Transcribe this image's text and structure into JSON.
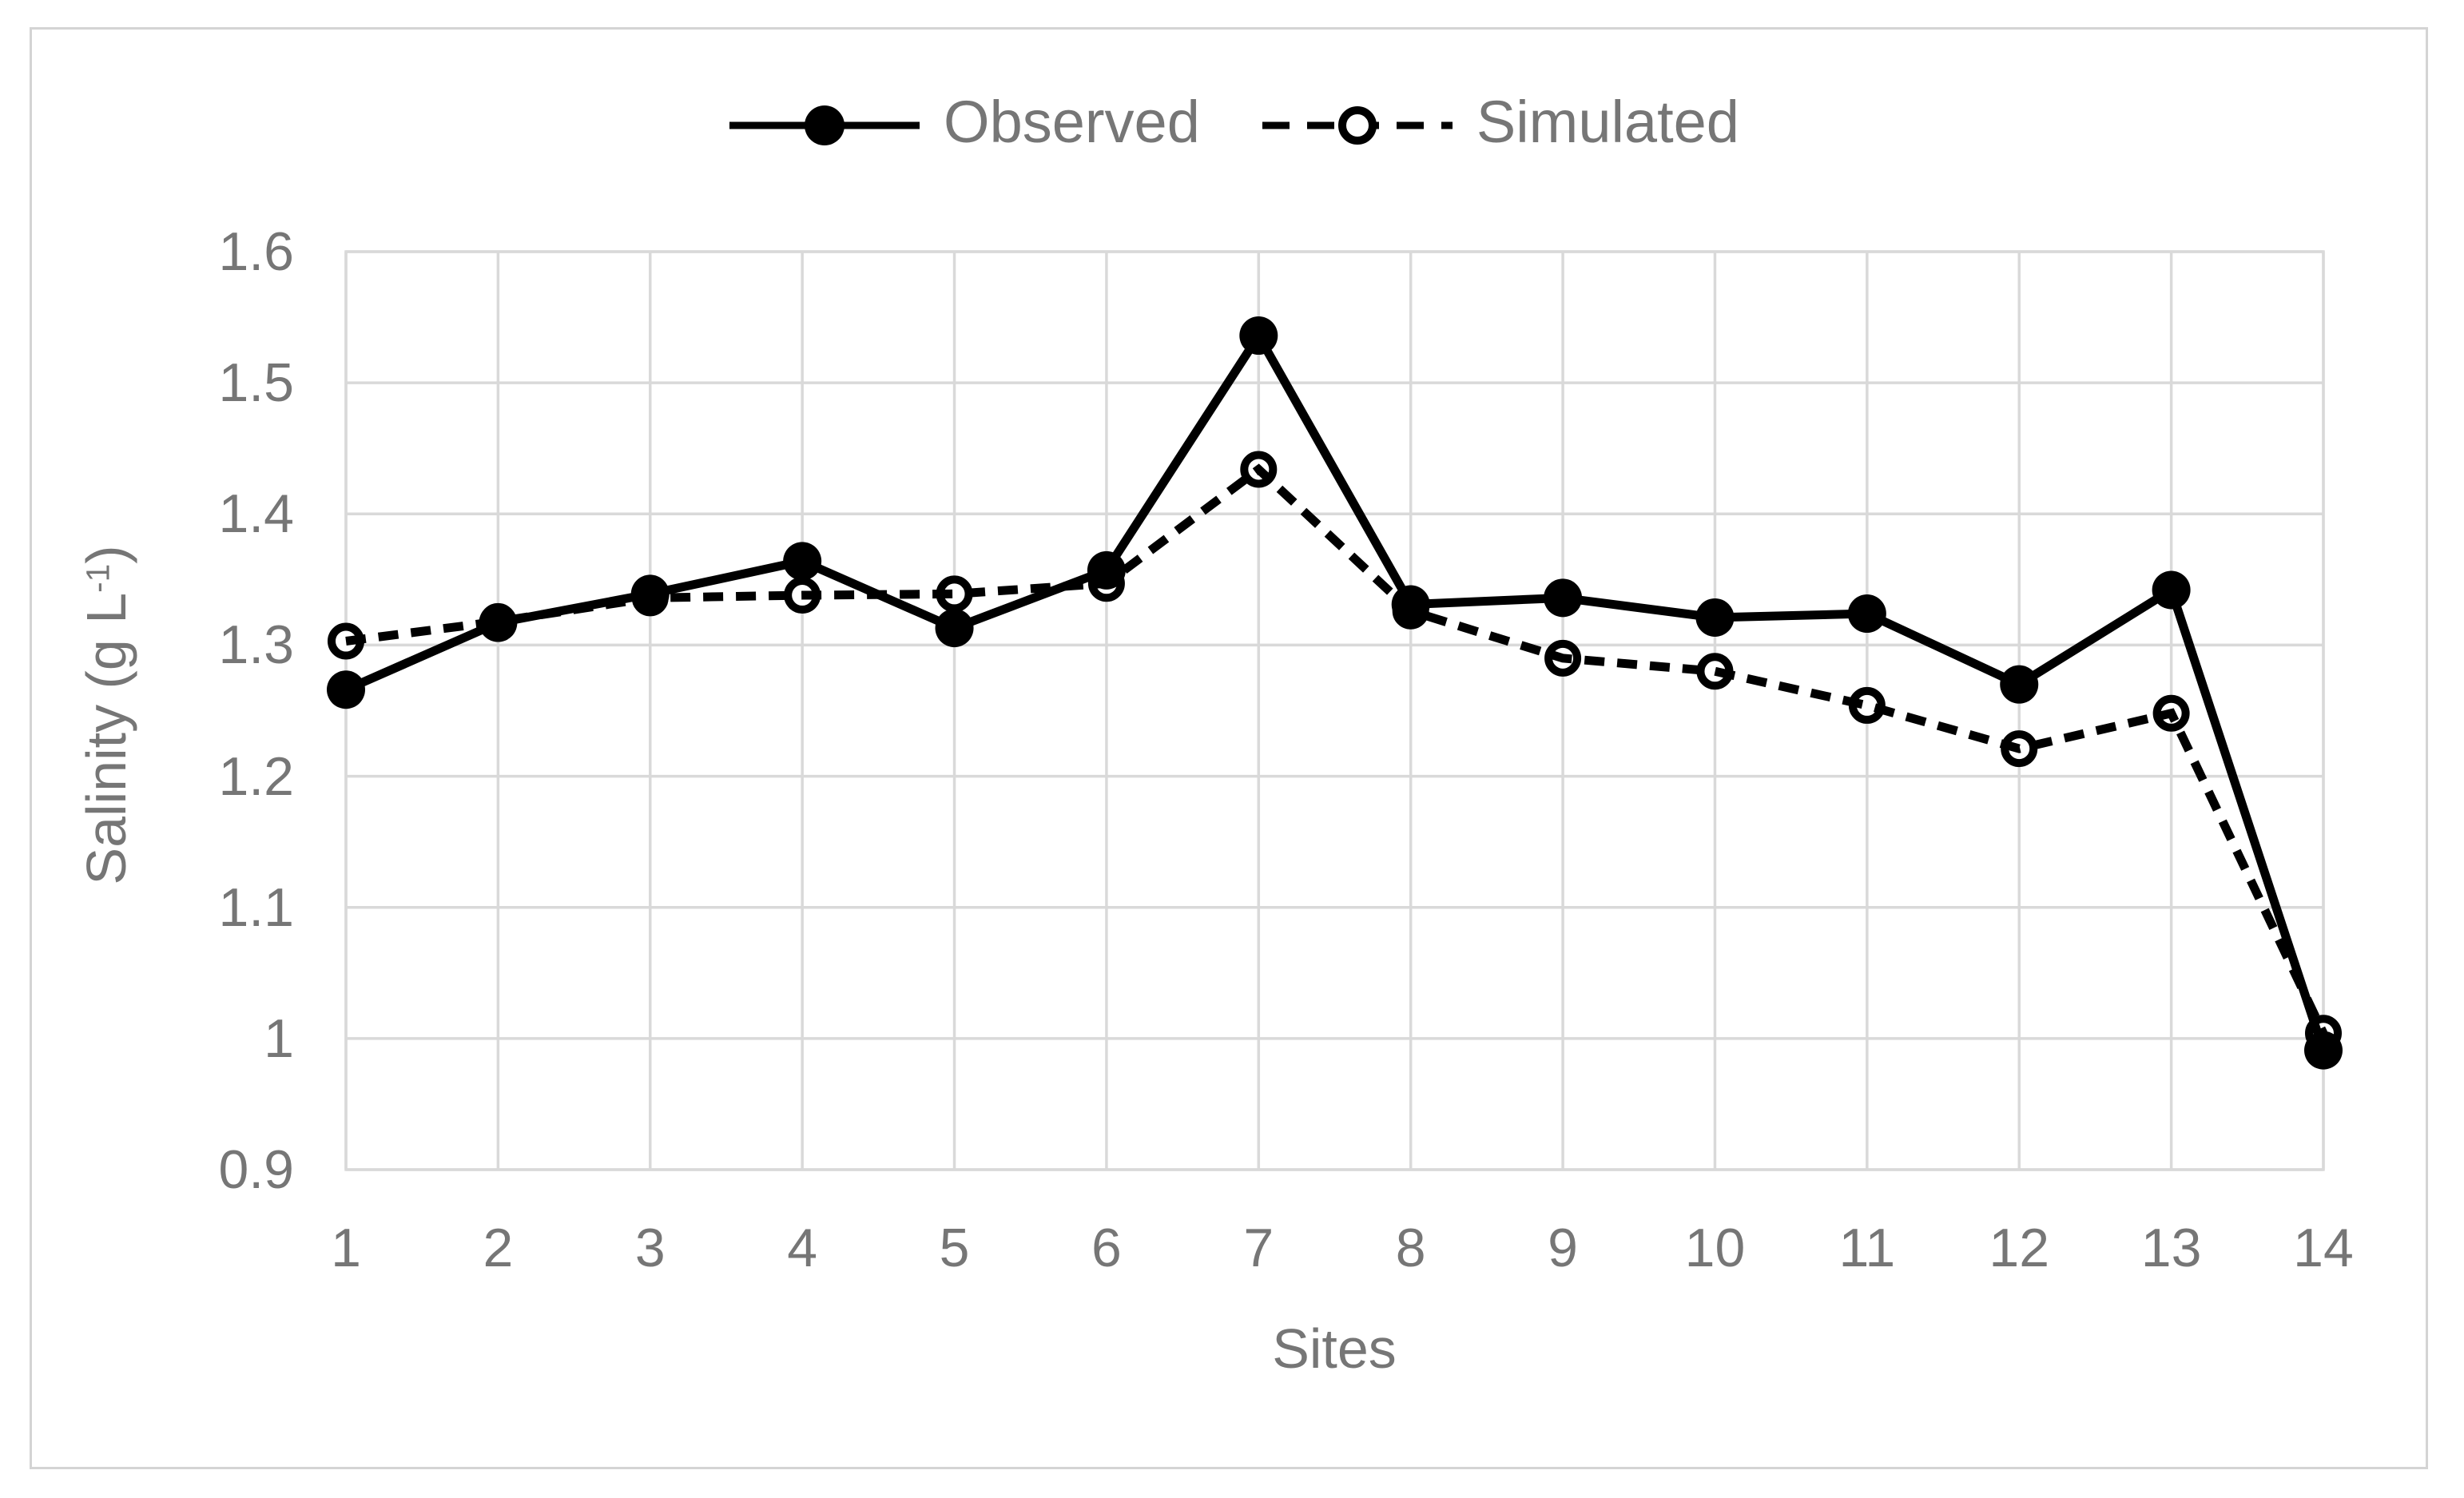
{
  "figure": {
    "background": "#ffffff",
    "border_color": "#d4d4d4"
  },
  "legend": {
    "position": "top-center",
    "text_color": "#767676",
    "items": [
      {
        "label": "Observed",
        "line_style": "solid",
        "marker": "filled-circle"
      },
      {
        "label": "Simulated",
        "line_style": "dashed",
        "marker": "open-circle"
      }
    ]
  },
  "chart_data": {
    "type": "line",
    "title": "",
    "xlabel": "Sites",
    "ylabel": "Salinity (g L-1)",
    "ylabel_parts": {
      "base": "Salinity (g L",
      "superscript": "-1",
      "suffix": ")"
    },
    "categories": [
      "1",
      "2",
      "3",
      "4",
      "5",
      "6",
      "7",
      "8",
      "9",
      "10",
      "11",
      "12",
      "13",
      "14"
    ],
    "y_ticks": [
      "0.9",
      "1",
      "1.1",
      "1.2",
      "1.3",
      "1.4",
      "1.5",
      "1.6"
    ],
    "ylim": [
      0.9,
      1.6
    ],
    "y_step": 0.1,
    "grid": "both",
    "gridline_color": "#d9d9d9",
    "axis_text_color": "#767676",
    "series_color": "#000000",
    "legend_position": "top-center",
    "series": [
      {
        "name": "Observed",
        "style": "solid",
        "marker": "filled-circle",
        "values": [
          1.266,
          1.317,
          1.339,
          1.364,
          1.313,
          1.357,
          1.536,
          1.331,
          1.336,
          1.321,
          1.324,
          1.27,
          1.342,
          0.991
        ]
      },
      {
        "name": "Simulated",
        "style": "dashed",
        "marker": "open-circle",
        "values": [
          1.303,
          1.318,
          1.336,
          1.338,
          1.339,
          1.347,
          1.434,
          1.326,
          1.29,
          1.28,
          1.254,
          1.221,
          1.248,
          1.004
        ]
      }
    ]
  }
}
